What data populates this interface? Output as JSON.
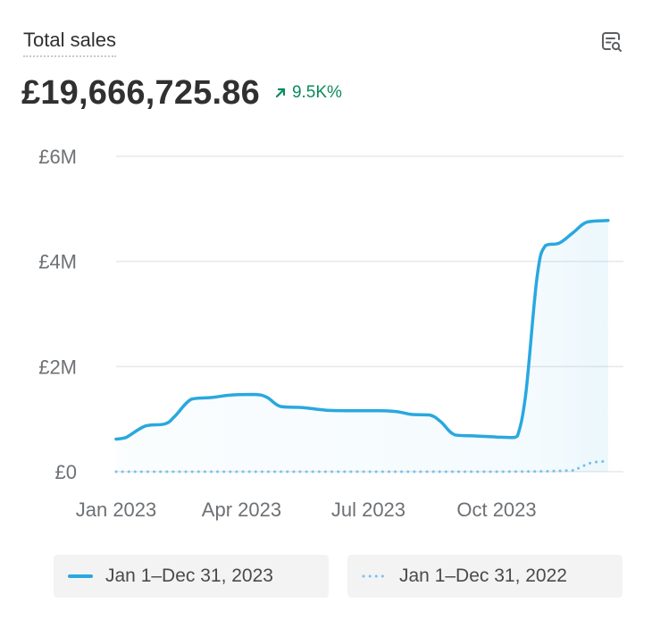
{
  "header": {
    "title": "Total sales",
    "total": "£19,666,725.86",
    "change": "9.5K%"
  },
  "colors": {
    "current": "#29a8df",
    "previous": "#7cc3ea",
    "grid": "#e6e8eb",
    "change_up": "#0c8a5b"
  },
  "icons": {
    "explore": "chart-search-icon",
    "trend": "arrow-up-right-icon"
  },
  "chart_data": {
    "type": "line",
    "ylim": [
      0,
      6000000
    ],
    "y_ticks": [
      {
        "value": 0,
        "label": "£0"
      },
      {
        "value": 2000000,
        "label": "£2M"
      },
      {
        "value": 4000000,
        "label": "£4M"
      },
      {
        "value": 6000000,
        "label": "£6M"
      }
    ],
    "x_ticks": [
      {
        "date": "2023-01-01",
        "label": "Jan 2023"
      },
      {
        "date": "2023-04-01",
        "label": "Apr 2023"
      },
      {
        "date": "2023-07-01",
        "label": "Jul 2023"
      },
      {
        "date": "2023-10-01",
        "label": "Oct 2023"
      }
    ],
    "xlim": [
      "2023-01-01",
      "2023-12-31"
    ],
    "grid": true,
    "series": [
      {
        "name": "Jan 1–Dec 31, 2023",
        "style": "solid",
        "points": [
          [
            "2023-01-01",
            620000
          ],
          [
            "2023-01-08",
            650000
          ],
          [
            "2023-01-22",
            870000
          ],
          [
            "2023-02-05",
            910000
          ],
          [
            "2023-02-12",
            1050000
          ],
          [
            "2023-02-24",
            1380000
          ],
          [
            "2023-03-10",
            1410000
          ],
          [
            "2023-03-25",
            1460000
          ],
          [
            "2023-04-10",
            1470000
          ],
          [
            "2023-04-19",
            1420000
          ],
          [
            "2023-04-29",
            1240000
          ],
          [
            "2023-05-15",
            1220000
          ],
          [
            "2023-06-01",
            1170000
          ],
          [
            "2023-06-22",
            1160000
          ],
          [
            "2023-07-10",
            1160000
          ],
          [
            "2023-07-22",
            1140000
          ],
          [
            "2023-08-01",
            1090000
          ],
          [
            "2023-08-14",
            1080000
          ],
          [
            "2023-08-22",
            950000
          ],
          [
            "2023-09-01",
            700000
          ],
          [
            "2023-09-16",
            680000
          ],
          [
            "2023-10-01",
            660000
          ],
          [
            "2023-10-12",
            650000
          ],
          [
            "2023-10-16",
            680000
          ],
          [
            "2023-10-22",
            1500000
          ],
          [
            "2023-10-30",
            3700000
          ],
          [
            "2023-11-05",
            4300000
          ],
          [
            "2023-11-15",
            4350000
          ],
          [
            "2023-11-25",
            4550000
          ],
          [
            "2023-12-05",
            4750000
          ],
          [
            "2023-12-20",
            4780000
          ]
        ]
      },
      {
        "name": "Jan 1–Dec 31, 2022",
        "style": "dotted",
        "points": [
          [
            "2023-01-01",
            0
          ],
          [
            "2023-06-01",
            0
          ],
          [
            "2023-10-01",
            0
          ],
          [
            "2023-11-20",
            20000
          ],
          [
            "2023-11-28",
            60000
          ],
          [
            "2023-12-08",
            170000
          ],
          [
            "2023-12-20",
            200000
          ]
        ]
      }
    ]
  }
}
